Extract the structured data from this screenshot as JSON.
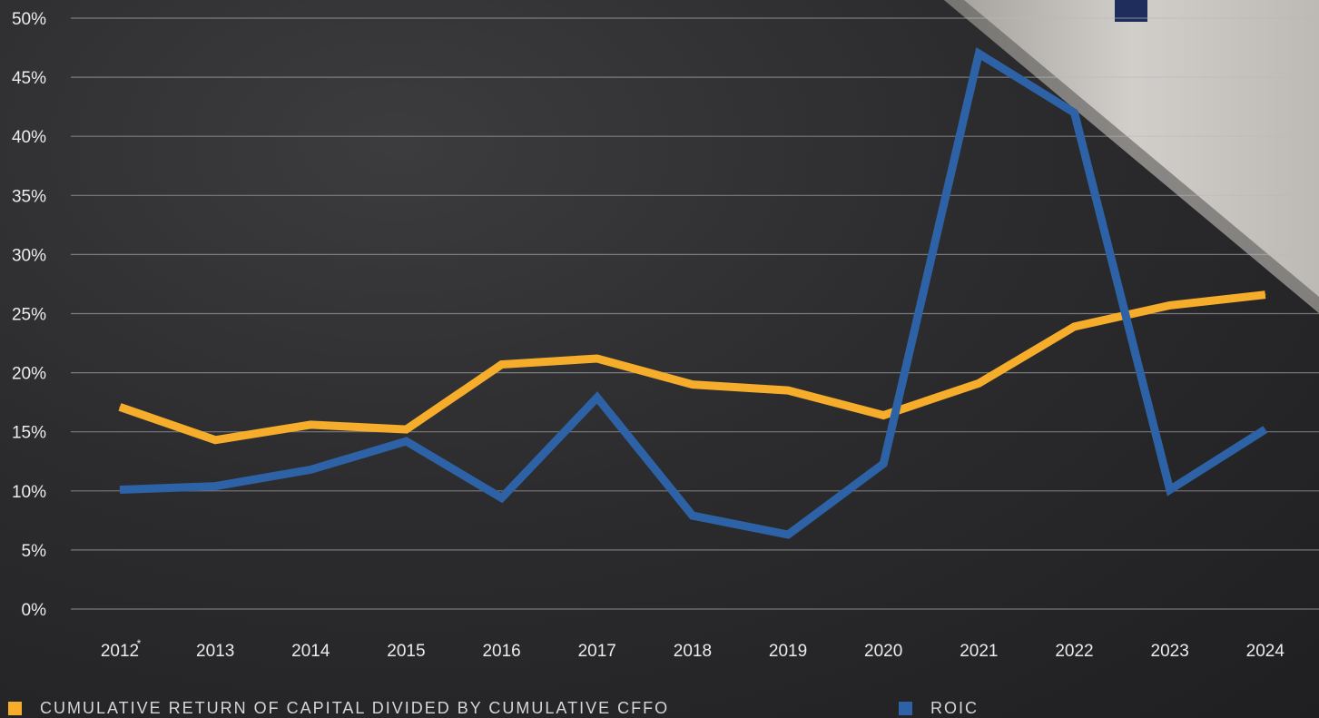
{
  "chart_data": {
    "type": "line",
    "categories": [
      "2012",
      "2013",
      "2014",
      "2015",
      "2016",
      "2017",
      "2018",
      "2019",
      "2020",
      "2021",
      "2022",
      "2023",
      "2024"
    ],
    "first_category_footnote_mark": "*",
    "y_ticks": [
      "0%",
      "5%",
      "10%",
      "15%",
      "20%",
      "25%",
      "30%",
      "35%",
      "40%",
      "45%",
      "50%"
    ],
    "ylim": [
      0,
      50
    ],
    "grid": true,
    "legend_position": "bottom",
    "series": [
      {
        "name": "CUMULATIVE RETURN OF CAPITAL DIVIDED BY CUMULATIVE CFFO",
        "color": "#f6ad2b",
        "values": [
          17.1,
          14.3,
          15.6,
          15.2,
          20.7,
          21.2,
          19.0,
          18.5,
          16.4,
          19.1,
          23.9,
          25.7,
          26.6
        ]
      },
      {
        "name": "ROIC",
        "color": "#2e62a6",
        "values": [
          10.1,
          10.4,
          11.8,
          14.2,
          9.4,
          17.9,
          7.9,
          6.3,
          12.3,
          47.0,
          42.0,
          10.1,
          15.2
        ]
      }
    ]
  }
}
